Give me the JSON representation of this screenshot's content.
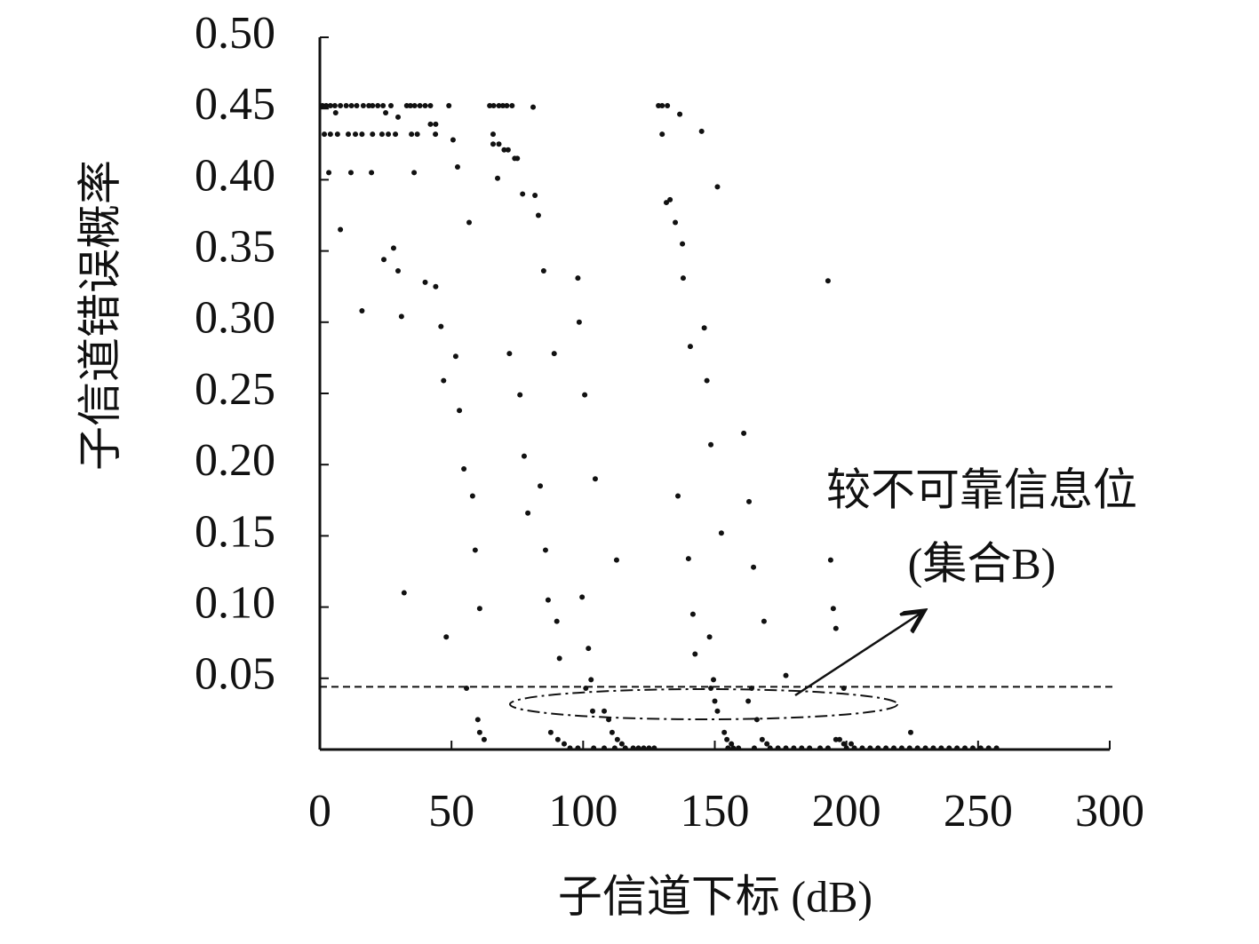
{
  "chart_data": {
    "type": "scatter",
    "y_label": "子信道错误概率",
    "x_label": "子信道下标 (dB)",
    "annotation": [
      "较不可靠信息位",
      "(集合B)"
    ],
    "threshold": 0.044,
    "color": "#111111",
    "xlim": [
      0,
      300
    ],
    "xticks": [
      0,
      50,
      100,
      150,
      200,
      250,
      300
    ],
    "ylim": [
      0,
      0.5
    ],
    "yticks": [
      {
        "value": 0.05,
        "label": "0.05"
      },
      {
        "value": 0.1,
        "label": "0.10"
      },
      0.15,
      {
        "value": 0.2,
        "label": "0.20"
      },
      0.25,
      {
        "value": 0.3,
        "label": "0.30"
      },
      0.35,
      {
        "value": 0.4,
        "label": "0.40"
      },
      0.45,
      {
        "value": 0.5,
        "label": "0.50"
      }
    ],
    "x": [
      1,
      2.4,
      4,
      5.7,
      7.8,
      10,
      12,
      14,
      16.5,
      18.6,
      20,
      22,
      24,
      27,
      33,
      34.4,
      36,
      38,
      40,
      42,
      49,
      64.5,
      66,
      68,
      69.5,
      71,
      73,
      81,
      128.6,
      130,
      132,
      6,
      25,
      29.7,
      136.7,
      1.7,
      4,
      6.7,
      10.8,
      13.5,
      16,
      20,
      23.6,
      26,
      28.7,
      34.8,
      37,
      43.9,
      65.8,
      130,
      145,
      42,
      44,
      50.6,
      65.8,
      68,
      70,
      71.5,
      74,
      75,
      52.3,
      3.4,
      11.8,
      19.6,
      35.8,
      67.5,
      151,
      77,
      81.7,
      133,
      131.6,
      83,
      56.7,
      135,
      7.8,
      137.7,
      28,
      24.3,
      85,
      29.7,
      98,
      138,
      193,
      40,
      44,
      16,
      31,
      98.5,
      46,
      146,
      140.7,
      72,
      89,
      51.6,
      47,
      147,
      76,
      100.6,
      53,
      161,
      148.5,
      77.6,
      54.7,
      104.6,
      83.7,
      136,
      58,
      163,
      79,
      152.5,
      59,
      85.7,
      112.7,
      140,
      194,
      164.7,
      32,
      99.6,
      86.7,
      60.7,
      195,
      141.7,
      90,
      168.7,
      196,
      48,
      148,
      102,
      142.5,
      91,
      177,
      103,
      149.5,
      55.7,
      101,
      148.5,
      199,
      164,
      150,
      162.7,
      103.6,
      108,
      151,
      60,
      109.7,
      166,
      60.7,
      87.7,
      111,
      153.6,
      224.4,
      62.4,
      90.4,
      113,
      154.6,
      168,
      196,
      197.4,
      92.8,
      114.7,
      156.3,
      169.8,
      199,
      201.8,
      95,
      98,
      104,
      108,
      112,
      116,
      119,
      121,
      123,
      125,
      127,
      155,
      157,
      159,
      165,
      171,
      174,
      177,
      180,
      183,
      186,
      190,
      193,
      200,
      203,
      206,
      209,
      212,
      215,
      218,
      221,
      224,
      227,
      230,
      233,
      236,
      239,
      242,
      245,
      248,
      251,
      254,
      257
    ],
    "values": [
      0.452,
      0.452,
      0.452,
      0.452,
      0.452,
      0.452,
      0.452,
      0.452,
      0.452,
      0.452,
      0.452,
      0.452,
      0.452,
      0.452,
      0.452,
      0.452,
      0.452,
      0.452,
      0.452,
      0.452,
      0.452,
      0.452,
      0.452,
      0.452,
      0.452,
      0.452,
      0.452,
      0.451,
      0.452,
      0.452,
      0.452,
      0.447,
      0.447,
      0.444,
      0.446,
      0.432,
      0.432,
      0.432,
      0.432,
      0.432,
      0.432,
      0.432,
      0.432,
      0.432,
      0.432,
      0.432,
      0.432,
      0.432,
      0.432,
      0.432,
      0.434,
      0.439,
      0.439,
      0.428,
      0.425,
      0.425,
      0.421,
      0.421,
      0.415,
      0.415,
      0.409,
      0.405,
      0.405,
      0.405,
      0.405,
      0.401,
      0.395,
      0.39,
      0.389,
      0.386,
      0.384,
      0.375,
      0.37,
      0.37,
      0.365,
      0.355,
      0.352,
      0.344,
      0.336,
      0.336,
      0.331,
      0.331,
      0.329,
      0.328,
      0.325,
      0.308,
      0.304,
      0.3,
      0.297,
      0.296,
      0.283,
      0.278,
      0.278,
      0.276,
      0.259,
      0.259,
      0.249,
      0.249,
      0.238,
      0.222,
      0.214,
      0.206,
      0.197,
      0.19,
      0.185,
      0.178,
      0.178,
      0.174,
      0.166,
      0.152,
      0.14,
      0.14,
      0.133,
      0.134,
      0.133,
      0.128,
      0.11,
      0.107,
      0.105,
      0.099,
      0.099,
      0.095,
      0.09,
      0.09,
      0.085,
      0.079,
      0.079,
      0.071,
      0.067,
      0.064,
      0.052,
      0.049,
      0.049,
      0.043,
      0.043,
      0.043,
      0.043,
      0.043,
      0.034,
      0.034,
      0.027,
      0.027,
      0.027,
      0.021,
      0.021,
      0.021,
      0.012,
      0.012,
      0.012,
      0.012,
      0.012,
      0.007,
      0.007,
      0.007,
      0.007,
      0.007,
      0.007,
      0.007,
      0.004,
      0.004,
      0.004,
      0.004,
      0.004,
      0.004,
      0.001,
      0.001,
      0.001,
      0.001,
      0.001,
      0.001,
      0.001,
      0.001,
      0.001,
      0.001,
      0.001,
      0.001,
      0.001,
      0.001,
      0.001,
      0.001,
      0.001,
      0.001,
      0.001,
      0.001,
      0.001,
      0.001,
      0.001,
      0.001,
      0.001,
      0.001,
      0.001,
      0.001,
      0.001,
      0.001,
      0.001,
      0.001,
      0.001,
      0.001,
      0.001,
      0.001,
      0.001,
      0.001,
      0.001,
      0.001,
      0.001,
      0.001,
      0.001
    ]
  }
}
